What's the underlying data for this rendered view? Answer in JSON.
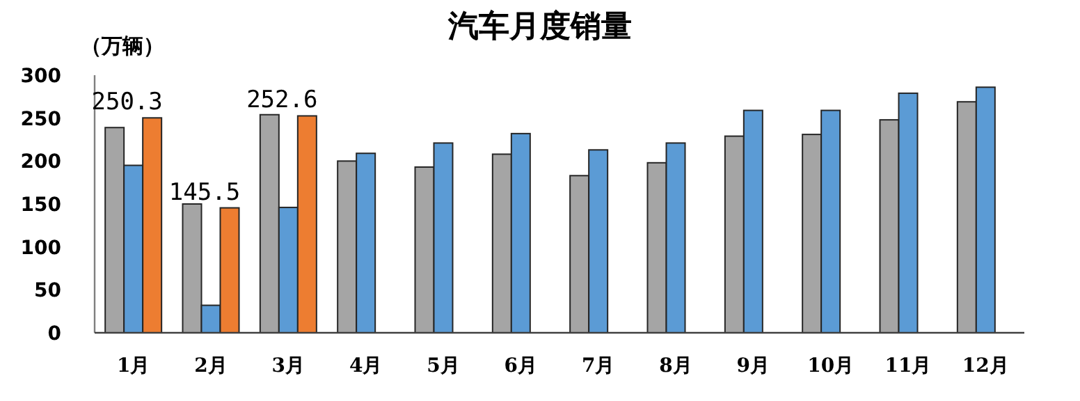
{
  "chart_data": {
    "type": "bar",
    "title": "汽车月度销量",
    "ylabel": "（万辆）",
    "categories": [
      "1月",
      "2月",
      "3月",
      "4月",
      "5月",
      "6月",
      "7月",
      "8月",
      "9月",
      "10月",
      "11月",
      "12月"
    ],
    "series": [
      {
        "color": "#a5a5a5",
        "values": [
          239,
          150,
          254,
          200,
          193,
          208,
          183,
          198,
          229,
          231,
          248,
          269
        ]
      },
      {
        "color": "#5b9bd5",
        "values": [
          195,
          32,
          146,
          209,
          221,
          232,
          213,
          221,
          259,
          259,
          279,
          286
        ]
      },
      {
        "color": "#ed7d31",
        "values": [
          250.3,
          145.5,
          252.6,
          null,
          null,
          null,
          null,
          null,
          null,
          null,
          null,
          null
        ],
        "value_labels": [
          "250.3",
          "145.5",
          "252.6",
          null,
          null,
          null,
          null,
          null,
          null,
          null,
          null,
          null
        ]
      }
    ],
    "ylim": [
      0,
      300
    ],
    "yticks": [
      0,
      50,
      100,
      150,
      200,
      250,
      300
    ],
    "grid": false
  }
}
